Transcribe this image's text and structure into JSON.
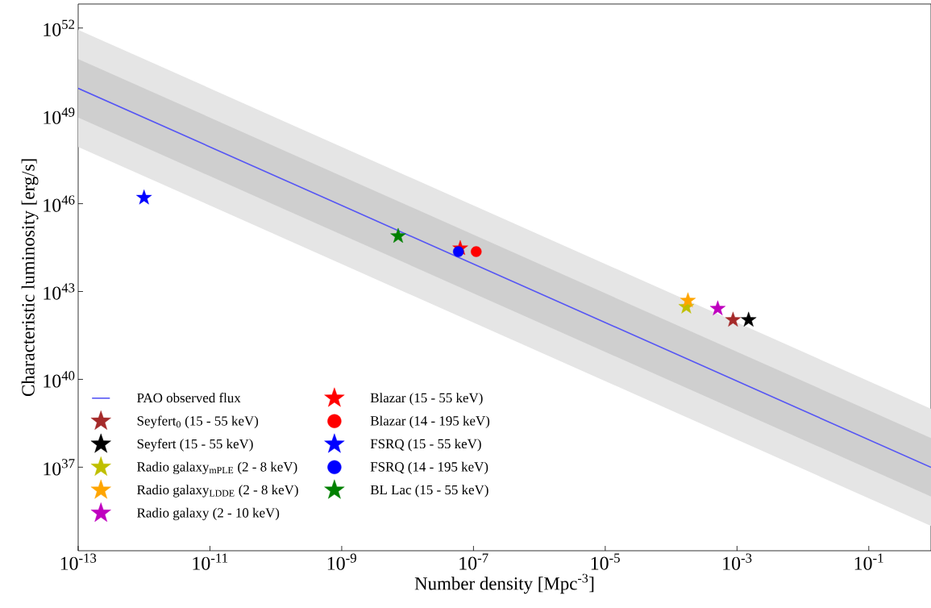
{
  "chart_data": {
    "type": "scatter",
    "xlabel": "Number density [Mpc$^{-3}$]",
    "ylabel": "Characteristic luminosity [erg/s]",
    "log": "xy",
    "xlim": [
      1e-13,
      0.88
    ],
    "ylim": [
      1.4e+34,
      6.6e+52
    ],
    "xticks": [
      {
        "value": 1e-13,
        "label": "10$^{-13}$"
      },
      {
        "value": 1e-11,
        "label": "10$^{-11}$"
      },
      {
        "value": 1e-09,
        "label": "10$^{-9}$"
      },
      {
        "value": 1e-07,
        "label": "10$^{-7}$"
      },
      {
        "value": 1e-05,
        "label": "10$^{-5}$"
      },
      {
        "value": 0.001,
        "label": "10$^{-3}$"
      },
      {
        "value": 0.1,
        "label": "10$^{-1}$"
      }
    ],
    "yticks": [
      {
        "value": 1e+37,
        "label": "10$^{37}$"
      },
      {
        "value": 1e+40,
        "label": "10$^{40}$"
      },
      {
        "value": 1e+43,
        "label": "10$^{43}$"
      },
      {
        "value": 1e+46,
        "label": "10$^{46}$"
      },
      {
        "value": 1e+49,
        "label": "10$^{49}$"
      },
      {
        "value": 1e+52,
        "label": "10$^{52}$"
      }
    ],
    "legend": "bottom left",
    "series": [
      {
        "name": "PAO observed flux",
        "type": "line",
        "color": "#5555f5",
        "x": [
          1e-13,
          0.88
        ],
        "values": [
          8.7e+49,
          9.9e+36
        ]
      },
      {
        "type": "line",
        "color": "#cfcfcf",
        "x": [
          1e-13,
          0.88
        ],
        "values": [
          null,
          null
        ],
        "lower": [
          8.7e+48,
          9.9e+35
        ],
        "upper": [
          8.7e+50,
          9.9e+37
        ]
      },
      {
        "type": "line",
        "color": "#e5e5e5",
        "x": [
          1e-13,
          0.88
        ],
        "values": [
          null,
          null
        ],
        "lower": [
          8.7e+47,
          9.9e+34
        ],
        "upper": [
          8.7e+51,
          9.9e+38
        ]
      },
      {
        "name": "Seyfert$_{0}$ (15 - 55 keV)",
        "marker": "star",
        "color": "#a52a2a",
        "x": [
          0.00087
        ],
        "values": [
          1.07e+42
        ]
      },
      {
        "name": "Seyfert (15 - 55 keV)",
        "marker": "star",
        "color": "#000000",
        "x": [
          0.0015
        ],
        "values": [
          1.07e+42
        ]
      },
      {
        "name": "Radio galaxy$_{mPLE}$ (2 - 8 keV)",
        "marker": "star",
        "color": "#bfbf00",
        "x": [
          0.00017
        ],
        "values": [
          3e+42
        ]
      },
      {
        "name": "Radio galaxy$_{LDDE}$ (2 - 8 keV)",
        "marker": "star",
        "color": "#ffa500",
        "x": [
          0.00018
        ],
        "values": [
          4.9e+42
        ]
      },
      {
        "name": "Radio galaxy (2 - 10 keV)",
        "marker": "star",
        "color": "#bf00bf",
        "x": [
          0.00051
        ],
        "values": [
          2.6e+42
        ]
      },
      {
        "name": "Blazar (15 - 55 keV)",
        "marker": "star",
        "color": "#ff0000",
        "x": [
          6.3e-08
        ],
        "values": [
          3e+44
        ]
      },
      {
        "name": "Blazar (14 - 195 keV)",
        "marker": "circle",
        "color": "#ff0000",
        "x": [
          1.1e-07
        ],
        "values": [
          2.3e+44
        ]
      },
      {
        "name": "FSRQ (15 - 55 keV)",
        "marker": "star",
        "color": "#0000ff",
        "x": [
          1e-12
        ],
        "values": [
          1.6e+46
        ]
      },
      {
        "name": "FSRQ (14 - 195 keV)",
        "marker": "circle",
        "color": "#0000ff",
        "x": [
          5.9e-08
        ],
        "values": [
          2.3e+44
        ]
      },
      {
        "name": "BL Lac (15 - 55 keV)",
        "marker": "star",
        "color": "#008000",
        "x": [
          7.2e-09
        ],
        "values": [
          7.8e+44
        ]
      }
    ]
  }
}
